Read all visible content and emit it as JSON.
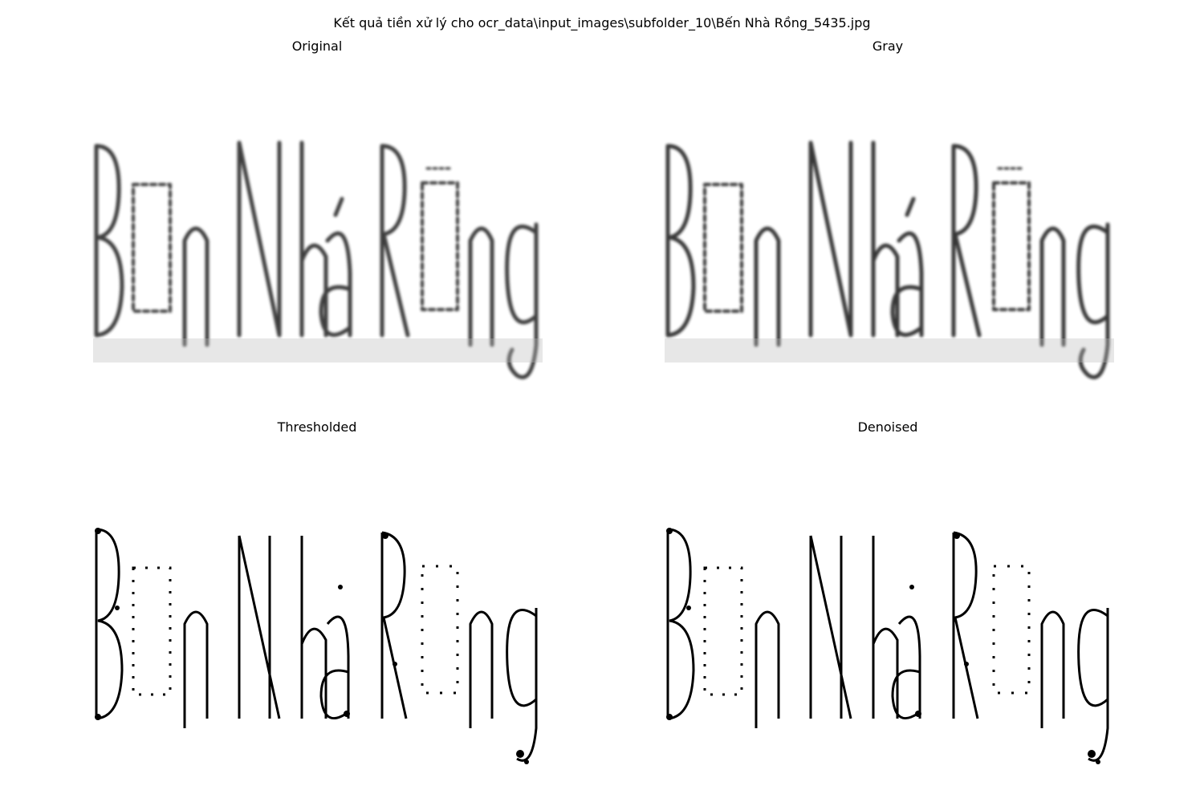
{
  "figure": {
    "suptitle": "Kết quả tiền xử lý cho ocr_data\\input_images\\subfolder_10\\Bến Nhà Rồng_5435.jpg"
  },
  "panels": [
    {
      "title": "Original"
    },
    {
      "title": "Gray"
    },
    {
      "title": "Thresholded"
    },
    {
      "title": "Denoised"
    }
  ]
}
